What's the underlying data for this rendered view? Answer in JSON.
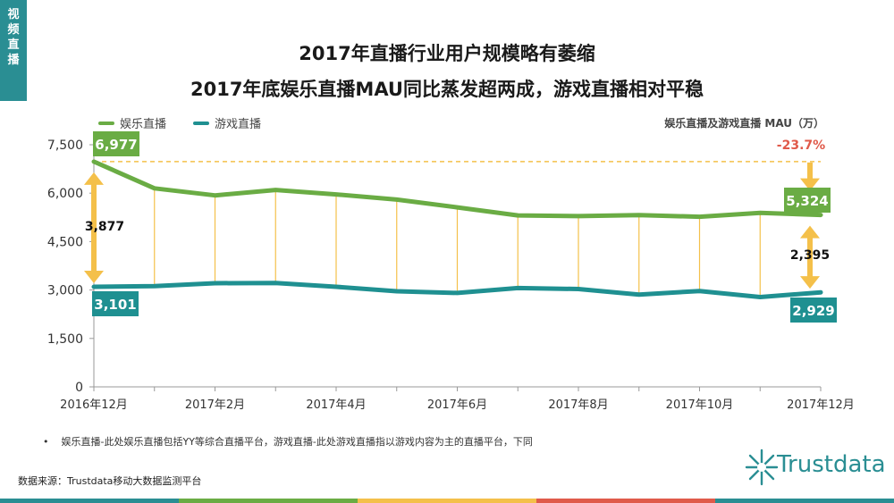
{
  "side_tab": [
    "视",
    "频",
    "直",
    "播"
  ],
  "title_line1": "2017年直播行业用户规模略有萎缩",
  "title_line2": "2017年底娱乐直播MAU同比蒸发超两成，游戏直播相对平稳",
  "unit_label": "娱乐直播及游戏直播 MAU（万）",
  "footnote": "娱乐直播-此处娱乐直播包括YY等综合直播平台，游戏直播-此处游戏直播指以游戏内容为主的直播平台，下同",
  "footnote_bullet": "•",
  "source": "数据来源：Trustdata移动大数据监测平台",
  "logo_text": "Trustdata",
  "colors": {
    "entertainment": "#6aac44",
    "gaming": "#1f9091",
    "gap": "#f4c04a",
    "decline": "#e05a4a",
    "teal": "#2a8e93"
  },
  "chart_data": {
    "type": "line",
    "x": [
      "2016年12月",
      "2017年1月",
      "2017年2月",
      "2017年3月",
      "2017年4月",
      "2017年5月",
      "2017年6月",
      "2017年7月",
      "2017年8月",
      "2017年9月",
      "2017年10月",
      "2017年11月",
      "2017年12月"
    ],
    "x_tick_labels": [
      "2016年12月",
      "",
      "2017年2月",
      "",
      "2017年4月",
      "",
      "2017年6月",
      "",
      "2017年8月",
      "",
      "2017年10月",
      "",
      "2017年12月"
    ],
    "y_ticks": [
      "0",
      "1,500",
      "3,000",
      "4,500",
      "6,000",
      "7,500"
    ],
    "ylim": [
      0,
      7500
    ],
    "series": [
      {
        "name": "娱乐直播",
        "values": [
          6977,
          6150,
          5930,
          6100,
          5960,
          5800,
          5560,
          5310,
          5290,
          5320,
          5270,
          5390,
          5324
        ]
      },
      {
        "name": "游戏直播",
        "values": [
          3101,
          3120,
          3210,
          3220,
          3100,
          2960,
          2910,
          3060,
          3030,
          2860,
          2970,
          2780,
          2929
        ]
      }
    ],
    "annotations": {
      "ent_start": "6,977",
      "game_start": "3,101",
      "ent_end": "5,324",
      "game_end": "2,929",
      "gap_start": "3,877",
      "gap_end": "2,395",
      "decline": "-23.7%"
    },
    "legend_position": "top-left",
    "grid": false
  }
}
